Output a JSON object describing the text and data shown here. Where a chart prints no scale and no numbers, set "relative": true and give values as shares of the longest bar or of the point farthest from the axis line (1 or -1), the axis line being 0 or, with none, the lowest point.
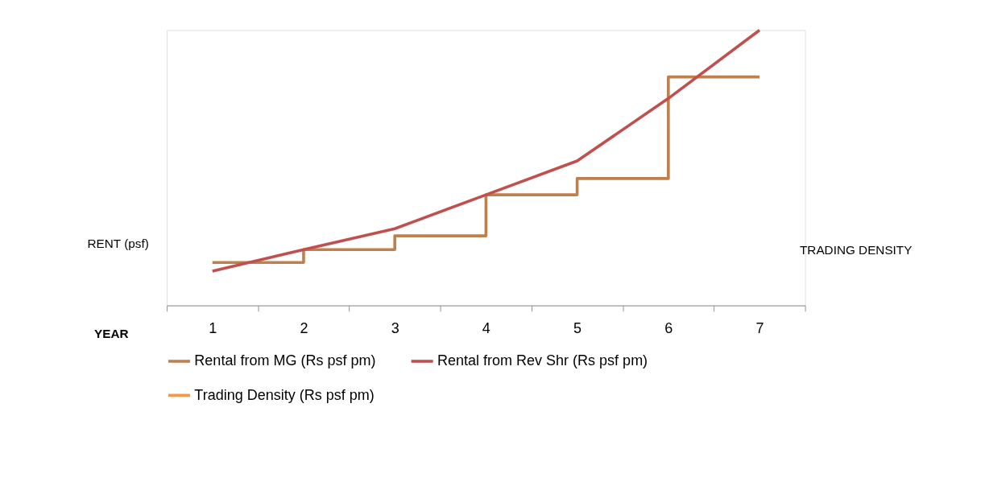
{
  "chart_data": {
    "type": "line",
    "relative": true,
    "xlabel": "YEAR",
    "ylabel": "RENT (psf)",
    "y2label": "TRADING DENSITY",
    "categories": [
      "1",
      "2",
      "3",
      "4",
      "5",
      "6",
      "7"
    ],
    "series": [
      {
        "name": "Rental from MG (Rs psf pm)",
        "type": "step",
        "color": "#c0804d",
        "values": [
          0.156,
          0.203,
          0.253,
          0.402,
          0.461,
          0.83,
          0.83
        ]
      },
      {
        "name": "Rental from Rev Shr (Rs psf pm)",
        "color": "#c0504d",
        "values": [
          0.125,
          0.203,
          0.279,
          0.402,
          0.525,
          0.752,
          1
        ]
      },
      {
        "name": "Trading Density (Rs psf pm)",
        "color": "#f79646",
        "values": [
          null,
          null,
          null,
          null,
          null,
          null,
          null
        ]
      }
    ],
    "legend": "bottom",
    "grid": false
  }
}
